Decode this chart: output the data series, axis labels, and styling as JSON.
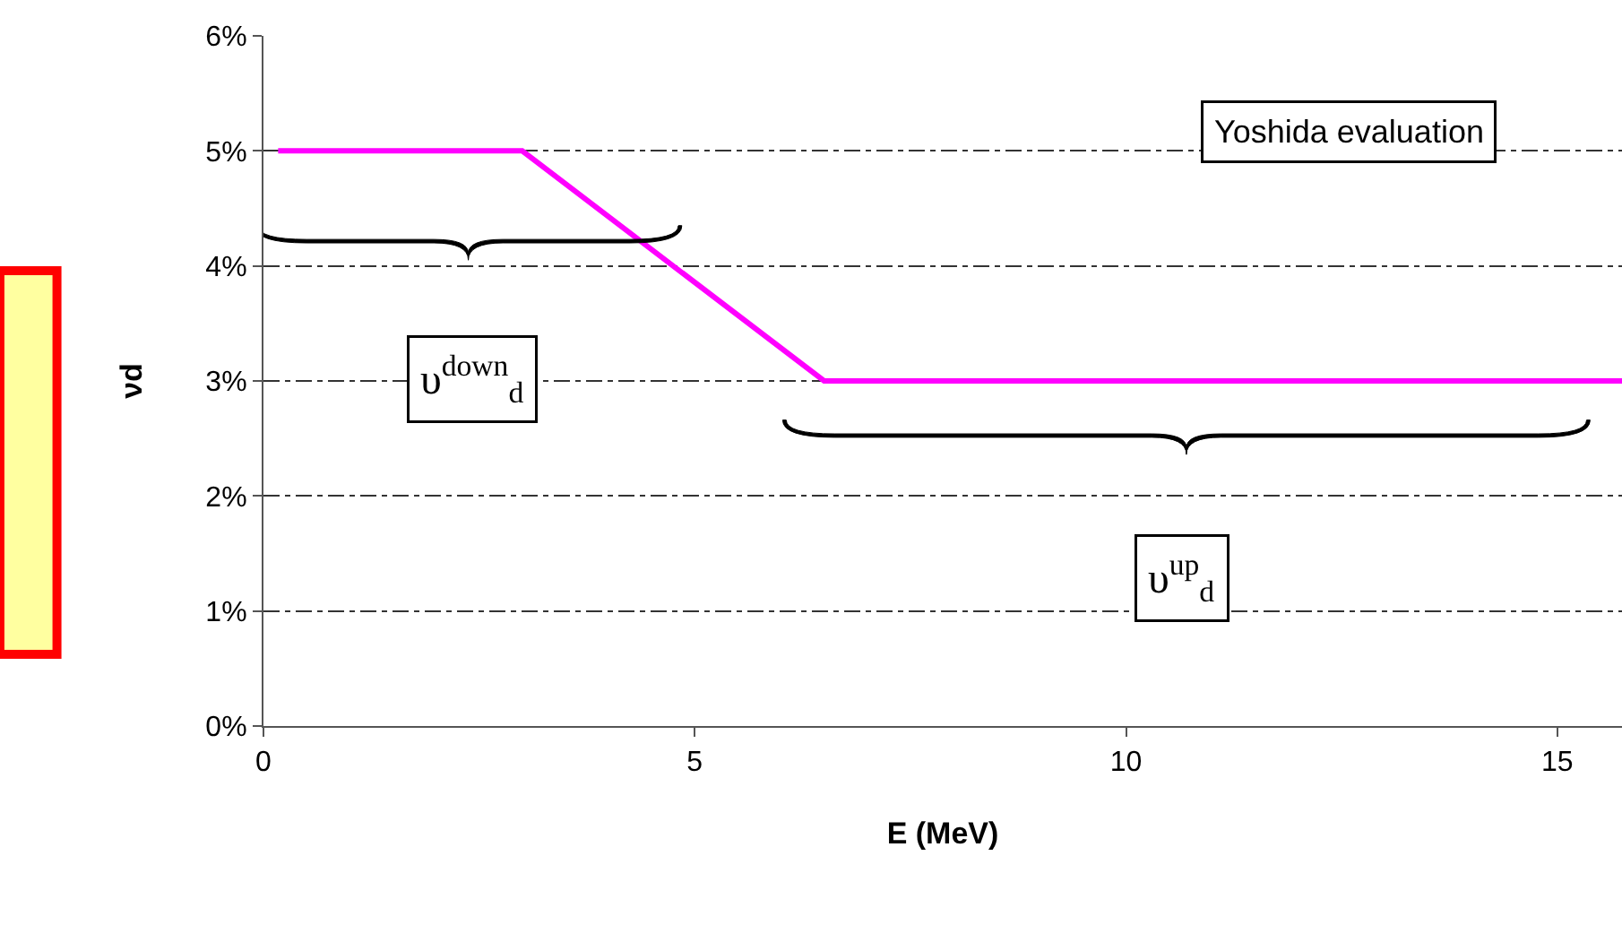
{
  "chart_data": {
    "type": "line",
    "x": [
      0.17,
      3,
      6.5,
      15.75
    ],
    "series": [
      {
        "color": "#ff00ff",
        "values": [
          5,
          5,
          3,
          3
        ]
      }
    ],
    "xlabel": "E (MeV)",
    "ylabel": "νd",
    "xlim": [
      0,
      15.75
    ],
    "xticks": [
      0,
      5,
      10,
      15
    ],
    "ylim": [
      0,
      6
    ],
    "yticks": [
      {
        "value": 0,
        "label": "0%"
      },
      {
        "value": 1,
        "label": "1%"
      },
      {
        "value": 2,
        "label": "2%"
      },
      {
        "value": 3,
        "label": "3%"
      },
      {
        "value": 4,
        "label": "4%"
      },
      {
        "value": 5,
        "label": "5%"
      },
      {
        "value": 6,
        "label": "6%"
      }
    ],
    "grid": "y",
    "marker": "none",
    "line_style": "solid",
    "annotations": [
      "Yoshida evaluation",
      "υ$^{down}$$_{d}$",
      "υ$^{up}$$_{d}$"
    ]
  }
}
